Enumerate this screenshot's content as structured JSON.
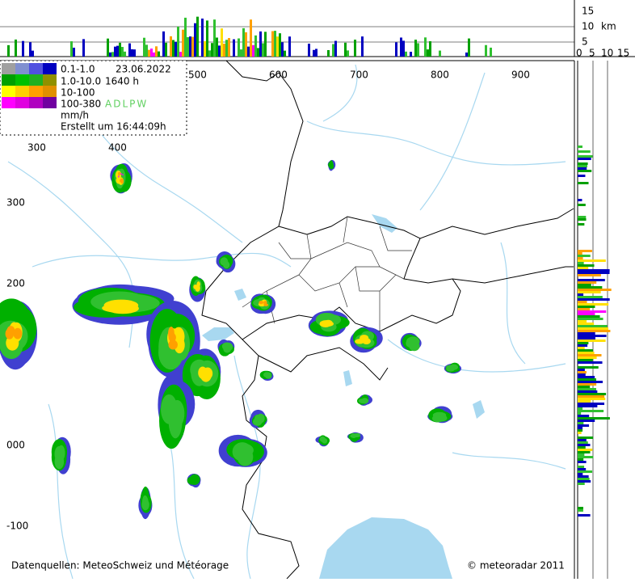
{
  "legend": {
    "rows": [
      "0.1-1.0",
      "1.0-10.0",
      "10-100",
      "100-380"
    ],
    "unit": "mm/h",
    "date": "23.06.2022",
    "time": "1640 h",
    "source_code": "ADLPW",
    "created": "Erstellt um 16:44:09h"
  },
  "map_axes": {
    "top_labels": [
      "500",
      "600",
      "700",
      "800",
      "900"
    ],
    "left_x_labels": [
      "300",
      "400"
    ],
    "y_labels": [
      "300",
      "200",
      "000",
      "-100"
    ]
  },
  "profile": {
    "height_labels": [
      "15",
      "10",
      "5"
    ],
    "height_unit": "km",
    "width_labels": [
      "0",
      "5",
      "10",
      "15"
    ]
  },
  "footer": {
    "sources": "Datenquellen: MeteoSchweiz und Météorage",
    "copyright": "© meteoradar 2011"
  }
}
